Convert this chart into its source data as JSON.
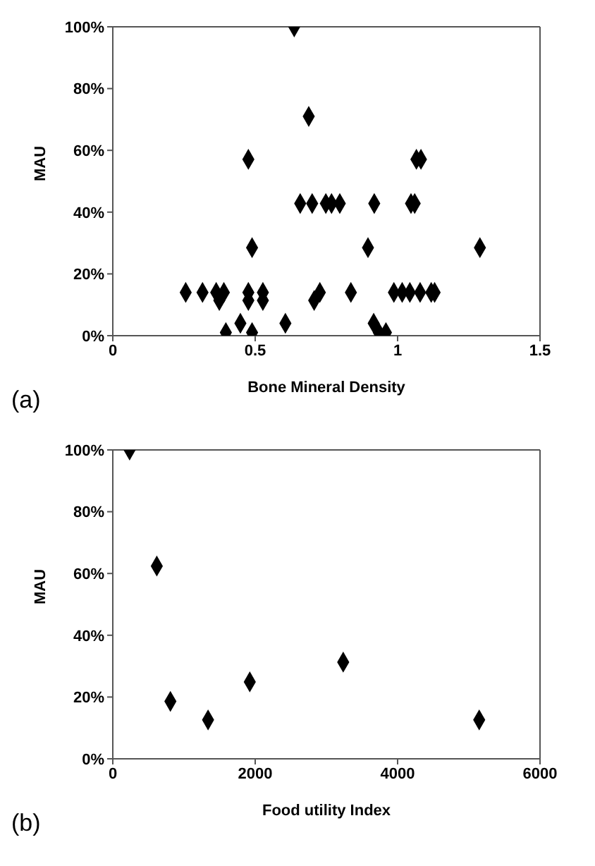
{
  "chart_data": [
    {
      "type": "scatter",
      "xlabel": "Bone Mineral Density",
      "ylabel": "MAU",
      "annotations": [
        "(a)"
      ],
      "marker": "diamond",
      "grid": false,
      "legend": false,
      "series": [
        {
          "color": "#000000",
          "x": [
            0.256,
            0.315,
            0.363,
            0.39,
            0.476,
            0.527,
            0.727,
            0.836,
            0.987,
            1.016,
            1.043,
            1.079,
            1.118,
            1.13,
            0.374,
            0.476,
            0.527,
            0.707,
            0.448,
            0.606,
            0.916,
            0.397,
            0.489,
            0.934,
            0.959,
            0.489,
            0.896,
            1.289,
            0.658,
            0.7,
            0.748,
            0.768,
            0.797,
            0.918,
            1.047,
            1.06,
            0.476,
            1.066,
            1.082,
            0.688,
            0.637
          ],
          "values": [
            14,
            14,
            14,
            14,
            14,
            14,
            14,
            14,
            14,
            14,
            14,
            14,
            14,
            14,
            11.4,
            11.4,
            11.4,
            11.4,
            4,
            4,
            4,
            1,
            1,
            1,
            1,
            28.5,
            28.5,
            28.5,
            42.8,
            42.8,
            42.8,
            42.8,
            42.8,
            42.8,
            42.8,
            42.8,
            57.1,
            57.1,
            57.1,
            71,
            100
          ]
        }
      ],
      "xlim": [
        0,
        1.5
      ],
      "xticks": [
        0,
        0.5,
        1,
        1.5
      ],
      "ylim": [
        0,
        100
      ],
      "yticks": [
        {
          "value": 0,
          "label": "0%"
        },
        {
          "value": 20,
          "label": "20%"
        },
        {
          "value": 40,
          "label": "40%"
        },
        {
          "value": 60,
          "label": "60%"
        },
        {
          "value": 80,
          "label": "80%"
        },
        {
          "value": 100,
          "label": "100%"
        }
      ]
    },
    {
      "type": "scatter",
      "xlabel": "Food utility Index",
      "ylabel": "MAU",
      "annotations": [
        "(b)"
      ],
      "marker": "diamond",
      "grid": false,
      "legend": false,
      "series": [
        {
          "color": "#000000",
          "x": [
            236,
            618,
            809,
            1338,
            1924,
            3236,
            5146
          ],
          "values": [
            100,
            62.4,
            18.6,
            12.6,
            24.9,
            31.3,
            12.6
          ]
        }
      ],
      "xlim": [
        0,
        6000
      ],
      "xticks": [
        0,
        2000,
        4000,
        6000
      ],
      "ylim": [
        0,
        100
      ],
      "yticks": [
        {
          "value": 0,
          "label": "0%"
        },
        {
          "value": 20,
          "label": "20%"
        },
        {
          "value": 40,
          "label": "40%"
        },
        {
          "value": 60,
          "label": "60%"
        },
        {
          "value": 80,
          "label": "80%"
        },
        {
          "value": 100,
          "label": "100%"
        }
      ]
    }
  ]
}
